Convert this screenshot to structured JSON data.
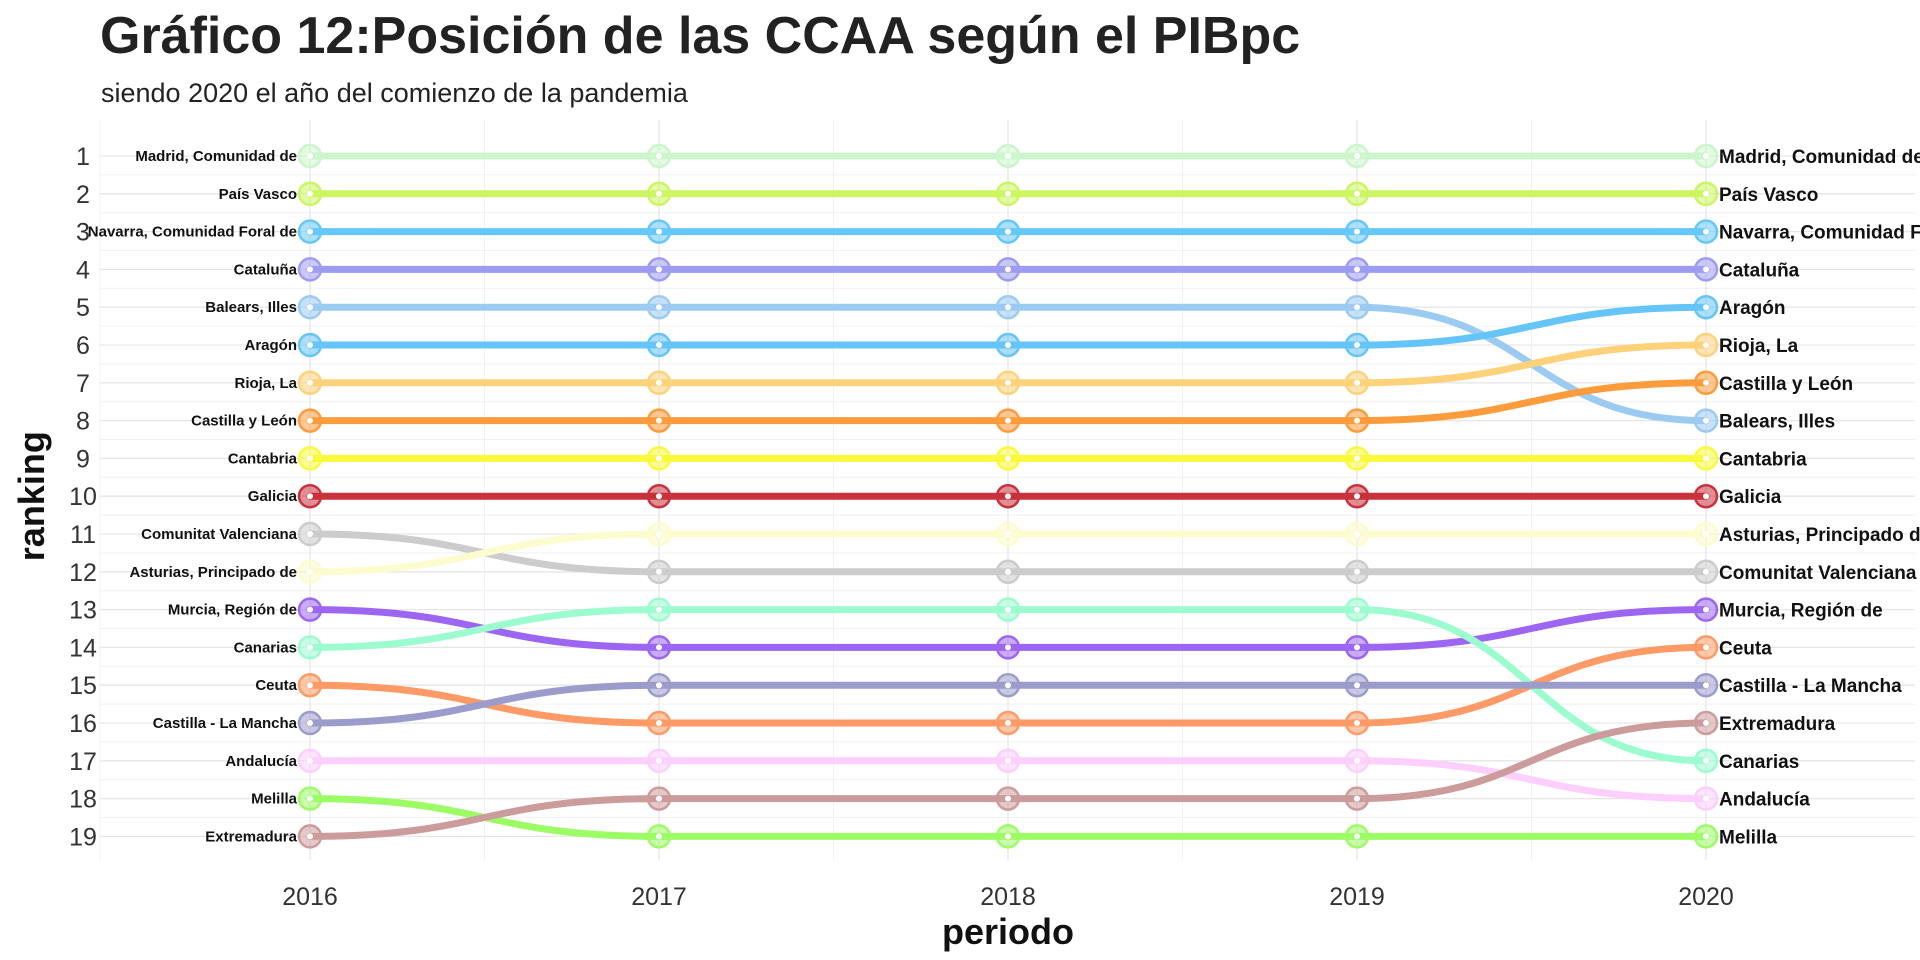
{
  "chart_data": {
    "type": "line",
    "chart_subtype": "bump chart",
    "title": "Gráfico 12:Posición de las CCAA según el PIBpc",
    "subtitle": "siendo 2020 el año del comienzo de la pandemia",
    "xlabel": "periodo",
    "ylabel": "ranking",
    "x": [
      2016,
      2017,
      2018,
      2019,
      2020
    ],
    "ylim": [
      1,
      19
    ],
    "y_reversed": true,
    "yticks": [
      1,
      2,
      3,
      4,
      5,
      6,
      7,
      8,
      9,
      10,
      11,
      12,
      13,
      14,
      15,
      16,
      17,
      18,
      19
    ],
    "grid": true,
    "legend": "none (direct labels at both ends)",
    "series": [
      {
        "name": "Madrid, Comunidad de",
        "values": [
          1,
          1,
          1,
          1,
          1
        ],
        "color": "#ccf5cc"
      },
      {
        "name": "País Vasco",
        "values": [
          2,
          2,
          2,
          2,
          2
        ],
        "color": "#ccf562"
      },
      {
        "name": "Navarra, Comunidad Foral de",
        "values": [
          3,
          3,
          3,
          3,
          3
        ],
        "color": "#66c8f8"
      },
      {
        "name": "Cataluña",
        "values": [
          4,
          4,
          4,
          4,
          4
        ],
        "color": "#9e9cf2"
      },
      {
        "name": "Balears, Illes",
        "values": [
          5,
          5,
          5,
          5,
          8
        ],
        "color": "#9ccbf2"
      },
      {
        "name": "Aragón",
        "values": [
          6,
          6,
          6,
          6,
          5
        ],
        "color": "#66c5f8"
      },
      {
        "name": "Rioja, La",
        "values": [
          7,
          7,
          7,
          7,
          6
        ],
        "color": "#fdd27a"
      },
      {
        "name": "Castilla y León",
        "values": [
          8,
          8,
          8,
          8,
          7
        ],
        "color": "#fd9c3c"
      },
      {
        "name": "Cantabria",
        "values": [
          9,
          9,
          9,
          9,
          9
        ],
        "color": "#fafa3c"
      },
      {
        "name": "Galicia",
        "values": [
          10,
          10,
          10,
          10,
          10
        ],
        "color": "#c8323c"
      },
      {
        "name": "Comunitat Valenciana",
        "values": [
          11,
          12,
          12,
          12,
          12
        ],
        "color": "#cccccc"
      },
      {
        "name": "Asturias, Principado de",
        "values": [
          12,
          11,
          11,
          11,
          11
        ],
        "color": "#fcfccf"
      },
      {
        "name": "Murcia, Región de",
        "values": [
          13,
          14,
          14,
          14,
          13
        ],
        "color": "#9c66f2"
      },
      {
        "name": "Canarias",
        "values": [
          14,
          13,
          13,
          13,
          17
        ],
        "color": "#9cfccf"
      },
      {
        "name": "Ceuta",
        "values": [
          15,
          16,
          16,
          16,
          14
        ],
        "color": "#fd9a66"
      },
      {
        "name": "Castilla - La Mancha",
        "values": [
          16,
          15,
          15,
          15,
          15
        ],
        "color": "#9c9ccc"
      },
      {
        "name": "Andalucía",
        "values": [
          17,
          17,
          17,
          17,
          18
        ],
        "color": "#fccffc"
      },
      {
        "name": "Melilla",
        "values": [
          18,
          19,
          19,
          19,
          19
        ],
        "color": "#9cfc66"
      },
      {
        "name": "Extremadura",
        "values": [
          19,
          18,
          18,
          18,
          16
        ],
        "color": "#cc9c9c"
      }
    ]
  }
}
